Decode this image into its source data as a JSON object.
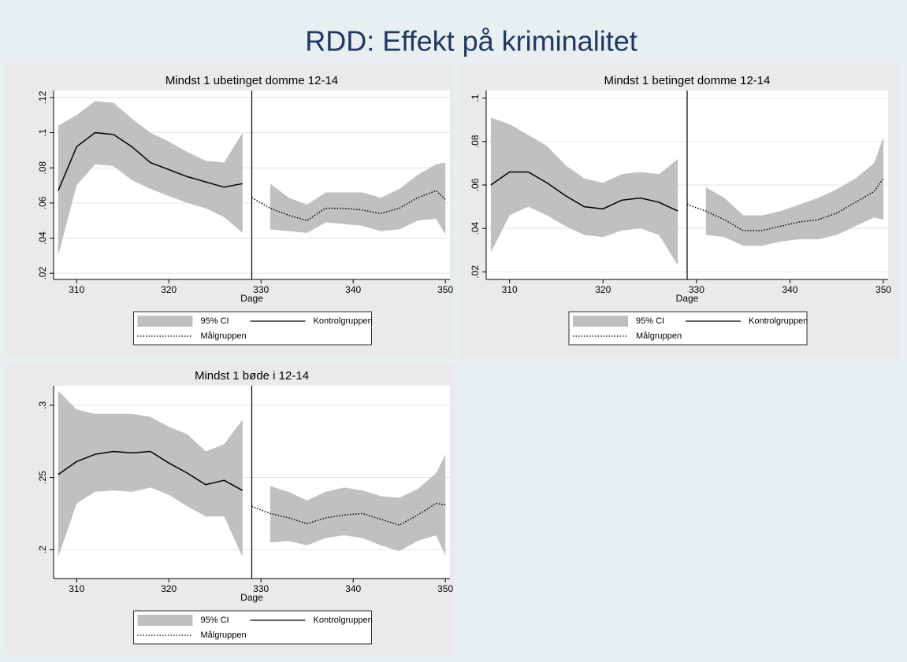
{
  "slide_title": "RDD: Effekt på kriminalitet",
  "chart_data": [
    {
      "type": "line",
      "title": "Mindst 1 ubetinget domme 12-14",
      "x_label": "Dage",
      "x": [
        308,
        310,
        312,
        314,
        316,
        318,
        320,
        322,
        324,
        326,
        328,
        329,
        331,
        333,
        335,
        337,
        339,
        341,
        343,
        345,
        347,
        349,
        350
      ],
      "xline": 329,
      "xlim": [
        307.5,
        350.5
      ],
      "xticks": [
        310,
        320,
        330,
        340,
        350
      ],
      "ylim": [
        0.0165,
        0.124
      ],
      "yticks": [
        {
          "value": 0.02,
          "label": ".02"
        },
        {
          "value": 0.04,
          "label": ".04"
        },
        {
          "value": 0.06,
          "label": ".06"
        },
        {
          "value": 0.08,
          "label": ".08"
        },
        {
          "value": 0.1,
          "label": ".1"
        },
        {
          "value": 0.12,
          "label": ".12"
        }
      ],
      "grid": true,
      "legend": "bottom",
      "band": {
        "name": "95% CI",
        "color": "#c0c0c0",
        "lower": [
          0.03,
          0.07,
          0.082,
          0.081,
          0.073,
          0.068,
          0.064,
          0.06,
          0.057,
          0.052,
          0.043,
          0.04,
          0.045,
          0.044,
          0.043,
          0.049,
          0.048,
          0.047,
          0.044,
          0.045,
          0.05,
          0.051,
          0.042
        ],
        "upper": [
          0.104,
          0.11,
          0.118,
          0.117,
          0.108,
          0.1,
          0.095,
          0.089,
          0.084,
          0.083,
          0.1,
          0.085,
          0.071,
          0.063,
          0.059,
          0.066,
          0.066,
          0.066,
          0.063,
          0.068,
          0.076,
          0.082,
          0.083
        ]
      },
      "series": [
        {
          "name": "Kontrolgruppen",
          "color": "#000000",
          "dash": "solid",
          "values": [
            0.067,
            0.092,
            0.1,
            0.099,
            0.092,
            0.083,
            0.079,
            0.075,
            0.072,
            0.069,
            0.071,
            null,
            null,
            null,
            null,
            null,
            null,
            null,
            null,
            null,
            null,
            null,
            null
          ]
        },
        {
          "name": "Målgruppen",
          "color": "#000000",
          "dash": "dotted",
          "values": [
            null,
            null,
            null,
            null,
            null,
            null,
            null,
            null,
            null,
            null,
            null,
            0.063,
            0.057,
            0.053,
            0.05,
            0.057,
            0.057,
            0.056,
            0.054,
            0.057,
            0.063,
            0.067,
            0.062
          ]
        }
      ]
    },
    {
      "type": "line",
      "title": "Mindst 1 betinget domme 12-14",
      "x_label": "Dage",
      "x": [
        308,
        310,
        312,
        314,
        316,
        318,
        320,
        322,
        324,
        326,
        328,
        329,
        331,
        333,
        335,
        337,
        339,
        341,
        343,
        345,
        347,
        349,
        350
      ],
      "xline": 329,
      "xlim": [
        307.5,
        350.5
      ],
      "xticks": [
        310,
        320,
        330,
        340,
        350
      ],
      "ylim": [
        0.0165,
        0.1035
      ],
      "yticks": [
        {
          "value": 0.02,
          "label": ".02"
        },
        {
          "value": 0.04,
          "label": ".04"
        },
        {
          "value": 0.06,
          "label": ".06"
        },
        {
          "value": 0.08,
          "label": ".08"
        },
        {
          "value": 0.1,
          "label": ".1"
        }
      ],
      "grid": true,
      "legend": "bottom",
      "band": {
        "name": "95% CI",
        "color": "#c0c0c0",
        "lower": [
          0.029,
          0.046,
          0.05,
          0.046,
          0.041,
          0.037,
          0.036,
          0.039,
          0.04,
          0.037,
          0.023,
          0.03,
          0.037,
          0.036,
          0.032,
          0.032,
          0.034,
          0.035,
          0.035,
          0.037,
          0.041,
          0.045,
          0.044
        ],
        "upper": [
          0.091,
          0.088,
          0.083,
          0.078,
          0.069,
          0.063,
          0.061,
          0.065,
          0.066,
          0.065,
          0.072,
          0.072,
          0.059,
          0.054,
          0.046,
          0.046,
          0.048,
          0.051,
          0.054,
          0.058,
          0.063,
          0.07,
          0.082
        ]
      },
      "series": [
        {
          "name": "Kontrolgruppen",
          "color": "#000000",
          "dash": "solid",
          "values": [
            0.06,
            0.066,
            0.066,
            0.061,
            0.055,
            0.05,
            0.049,
            0.053,
            0.054,
            0.052,
            0.048,
            null,
            null,
            null,
            null,
            null,
            null,
            null,
            null,
            null,
            null,
            null,
            null
          ]
        },
        {
          "name": "Målgruppen",
          "color": "#000000",
          "dash": "dotted",
          "values": [
            null,
            null,
            null,
            null,
            null,
            null,
            null,
            null,
            null,
            null,
            null,
            0.051,
            0.048,
            0.044,
            0.039,
            0.039,
            0.041,
            0.043,
            0.044,
            0.047,
            0.052,
            0.057,
            0.063
          ]
        }
      ]
    },
    {
      "type": "line",
      "title": "Mindst 1 bøde i 12-14",
      "x_label": "Dage",
      "x": [
        308,
        310,
        312,
        314,
        316,
        318,
        320,
        322,
        324,
        326,
        328,
        329,
        331,
        333,
        335,
        337,
        339,
        341,
        343,
        345,
        347,
        349,
        350
      ],
      "xline": 329,
      "xlim": [
        307.5,
        350.5
      ],
      "xticks": [
        310,
        320,
        330,
        340,
        350
      ],
      "ylim": [
        0.18,
        0.3135
      ],
      "yticks": [
        {
          "value": 0.2,
          "label": ".2"
        },
        {
          "value": 0.25,
          "label": ".25"
        },
        {
          "value": 0.3,
          "label": ".3"
        }
      ],
      "grid": true,
      "legend": "bottom",
      "band": {
        "name": "95% CI",
        "color": "#c0c0c0",
        "lower": [
          0.195,
          0.232,
          0.24,
          0.241,
          0.24,
          0.243,
          0.238,
          0.23,
          0.223,
          0.223,
          0.195,
          0.188,
          0.205,
          0.206,
          0.203,
          0.208,
          0.21,
          0.208,
          0.203,
          0.199,
          0.206,
          0.21,
          0.196
        ],
        "upper": [
          0.31,
          0.297,
          0.294,
          0.294,
          0.294,
          0.292,
          0.285,
          0.28,
          0.268,
          0.273,
          0.29,
          0.271,
          0.244,
          0.24,
          0.234,
          0.24,
          0.243,
          0.241,
          0.237,
          0.236,
          0.242,
          0.253,
          0.266
        ]
      },
      "series": [
        {
          "name": "Kontrolgruppen",
          "color": "#000000",
          "dash": "solid",
          "values": [
            0.252,
            0.261,
            0.266,
            0.268,
            0.267,
            0.268,
            0.26,
            0.253,
            0.245,
            0.248,
            0.241,
            null,
            null,
            null,
            null,
            null,
            null,
            null,
            null,
            null,
            null,
            null,
            null
          ]
        },
        {
          "name": "Målgruppen",
          "color": "#000000",
          "dash": "dotted",
          "values": [
            null,
            null,
            null,
            null,
            null,
            null,
            null,
            null,
            null,
            null,
            null,
            0.23,
            0.225,
            0.222,
            0.218,
            0.222,
            0.224,
            0.225,
            0.221,
            0.217,
            0.224,
            0.232,
            0.231
          ]
        }
      ]
    }
  ]
}
